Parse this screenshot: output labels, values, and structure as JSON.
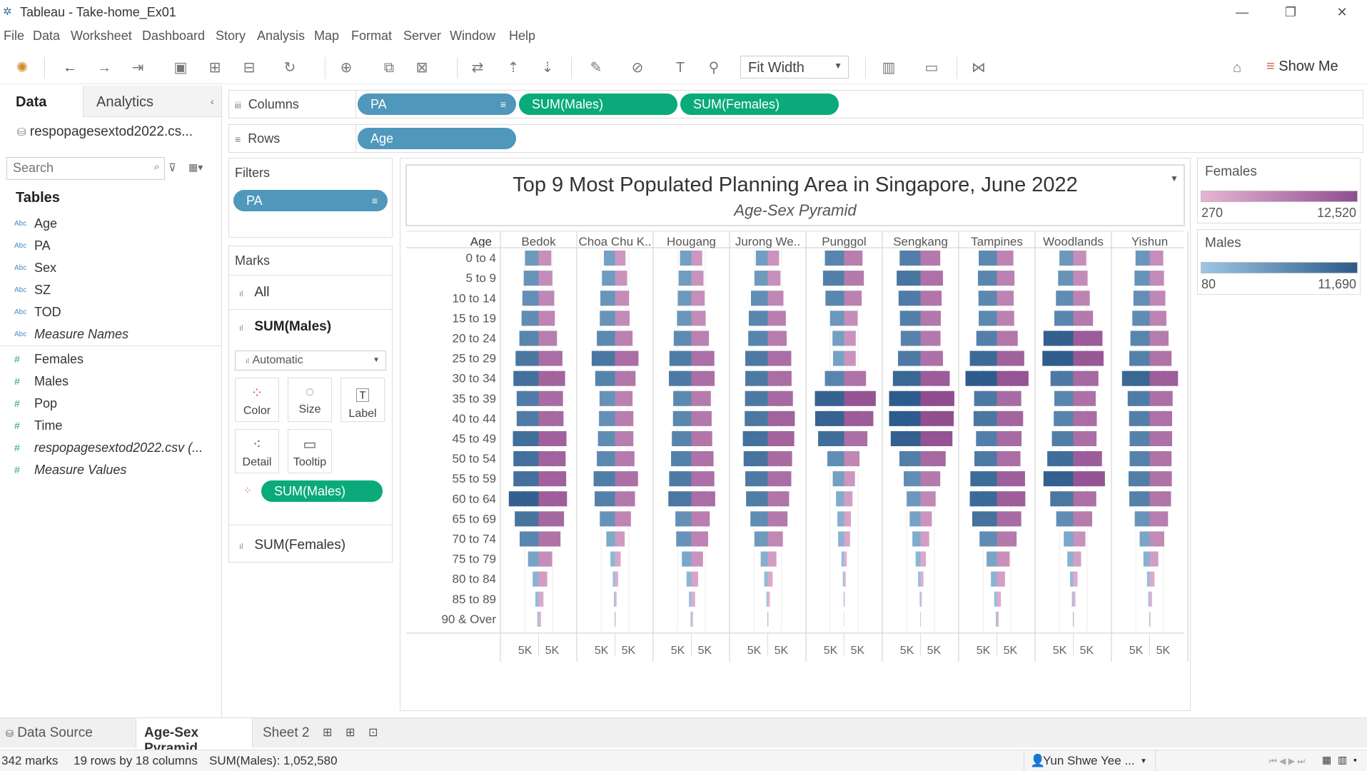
{
  "window": {
    "title": "Tableau - Take-home_Ex01"
  },
  "menu": [
    "File",
    "Data",
    "Worksheet",
    "Dashboard",
    "Story",
    "Analysis",
    "Map",
    "Format",
    "Server",
    "Window",
    "Help"
  ],
  "toolbar": {
    "fit": "Fit Width",
    "show_me": "Show Me"
  },
  "left_pane": {
    "tab_data": "Data",
    "tab_analytics": "Analytics",
    "data_source": "respopagesextod2022.cs...",
    "search_placeholder": "Search",
    "tables_heading": "Tables",
    "dimensions": [
      {
        "type": "Abc",
        "name": "Age"
      },
      {
        "type": "Abc",
        "name": "PA"
      },
      {
        "type": "Abc",
        "name": "Sex"
      },
      {
        "type": "Abc",
        "name": "SZ"
      },
      {
        "type": "Abc",
        "name": "TOD"
      },
      {
        "type": "Abc",
        "name": "Measure Names"
      }
    ],
    "measures": [
      {
        "type": "#",
        "name": "Females"
      },
      {
        "type": "#",
        "name": "Males"
      },
      {
        "type": "#",
        "name": "Pop"
      },
      {
        "type": "#",
        "name": "Time"
      },
      {
        "type": "#",
        "name": "respopagesextod2022.csv (..."
      },
      {
        "type": "#",
        "name": "Measure Values"
      }
    ]
  },
  "shelves": {
    "columns_label": "Columns",
    "rows_label": "Rows",
    "columns": [
      "PA",
      "SUM(Males)",
      "SUM(Females)"
    ],
    "rows": [
      "Age"
    ]
  },
  "filters": {
    "label": "Filters",
    "items": [
      "PA"
    ]
  },
  "marks": {
    "label": "Marks",
    "all": "All",
    "active": "SUM(Males)",
    "mark_type": "Automatic",
    "buttons": [
      "Color",
      "Size",
      "Label",
      "Detail",
      "Tooltip"
    ],
    "color_pill": "SUM(Males)",
    "other": "SUM(Females)"
  },
  "legends": {
    "females": {
      "title": "Females",
      "min": "270",
      "max": "12,520",
      "color_low": "#e7b6d4",
      "color_high": "#8f4d8f"
    },
    "males": {
      "title": "Males",
      "min": "80",
      "max": "11,690",
      "color_low": "#9cc7e3",
      "color_high": "#2c5a8a"
    }
  },
  "tabs": {
    "data_source": "Data Source",
    "active": "Age-Sex Pyramid",
    "sheet2": "Sheet 2"
  },
  "status": {
    "marks": "342 marks",
    "dims": "19 rows by 18 columns",
    "sum": "SUM(Males): 1,052,580",
    "user": "Yun Shwe Yee ..."
  },
  "chart_data": {
    "type": "bar",
    "title": "Top 9 Most Populated Planning Area in Singapore, June 2022",
    "subtitle": "Age-Sex Pyramid",
    "row_header": "Age",
    "axis_tick": "5K",
    "categories": [
      "0 to 4",
      "5 to 9",
      "10 to 14",
      "15 to 19",
      "20 to 24",
      "25 to 29",
      "30 to 34",
      "35 to 39",
      "40 to 44",
      "45 to 49",
      "50 to 54",
      "55 to 59",
      "60 to 64",
      "65 to 69",
      "70 to 74",
      "75 to 79",
      "80 to 84",
      "85 to 89",
      "90 & Over"
    ],
    "panels": [
      {
        "area": "Bedok",
        "males": [
          5000,
          5500,
          6000,
          6300,
          7100,
          8500,
          9300,
          8100,
          8100,
          9500,
          9300,
          9300,
          11000,
          8800,
          7000,
          3900,
          2200,
          1200,
          500
        ],
        "females": [
          4700,
          5100,
          5800,
          6000,
          6800,
          8800,
          9800,
          9000,
          9200,
          10300,
          10000,
          10200,
          10500,
          9400,
          8100,
          5000,
          3200,
          1800,
          900
        ]
      },
      {
        "area": "Choa Chu K..",
        "males": [
          4100,
          4800,
          5400,
          5600,
          6700,
          8600,
          7300,
          5700,
          5900,
          6300,
          6700,
          7900,
          7500,
          5600,
          3200,
          1700,
          800,
          400,
          150
        ],
        "females": [
          3900,
          4500,
          5200,
          5400,
          6500,
          8700,
          7600,
          6500,
          6800,
          6800,
          7200,
          8500,
          7400,
          5900,
          3600,
          2100,
          1200,
          600,
          250
        ]
      },
      {
        "area": "Hougang",
        "males": [
          4200,
          4700,
          5000,
          5300,
          6500,
          8100,
          8300,
          6700,
          6800,
          7200,
          7500,
          8200,
          8500,
          5900,
          5600,
          3500,
          1800,
          900,
          300
        ],
        "females": [
          4000,
          4500,
          4900,
          5300,
          6500,
          8500,
          8600,
          7200,
          7500,
          7700,
          8200,
          8500,
          8800,
          6800,
          6200,
          4300,
          2500,
          1400,
          600
        ]
      },
      {
        "area": "Jurong We..",
        "males": [
          4400,
          4900,
          6200,
          7000,
          7200,
          8300,
          8300,
          8400,
          8500,
          9200,
          8900,
          8300,
          8000,
          6400,
          4900,
          2600,
          1300,
          500,
          150
        ],
        "females": [
          4200,
          4700,
          5800,
          6700,
          7000,
          8700,
          8800,
          9300,
          10000,
          9800,
          9000,
          8700,
          7900,
          7300,
          5600,
          3200,
          1800,
          800,
          250
        ]
      },
      {
        "area": "Punggol",
        "males": [
          7100,
          7800,
          6900,
          5200,
          4300,
          4100,
          7100,
          10800,
          10700,
          9600,
          6200,
          4200,
          3000,
          2500,
          2200,
          1000,
          500,
          200,
          50
        ],
        "females": [
          6800,
          7300,
          6500,
          5000,
          4300,
          4300,
          8100,
          11700,
          10800,
          8600,
          5700,
          4000,
          3100,
          2500,
          2200,
          1000,
          600,
          250,
          100
        ]
      },
      {
        "area": "Sengkang",
        "males": [
          7700,
          8800,
          8100,
          7600,
          7300,
          8300,
          10200,
          11600,
          11600,
          11000,
          7800,
          6200,
          5100,
          4000,
          3000,
          1800,
          900,
          300,
          100
        ],
        "females": [
          7300,
          8300,
          7800,
          7500,
          7400,
          8300,
          10800,
          12500,
          12300,
          11800,
          9300,
          7300,
          5600,
          4200,
          3200,
          2000,
          1100,
          500,
          150
        ]
      },
      {
        "area": "Tampines",
        "males": [
          6700,
          7000,
          6800,
          6700,
          7600,
          10000,
          11600,
          8400,
          8600,
          7700,
          8300,
          9800,
          10000,
          9100,
          6400,
          3800,
          2200,
          1000,
          400
        ],
        "females": [
          6100,
          6500,
          6200,
          6400,
          7700,
          10100,
          11700,
          9000,
          9700,
          9100,
          8700,
          10400,
          10500,
          9000,
          7300,
          4700,
          3000,
          1500,
          700
        ]
      },
      {
        "area": "Woodlands",
        "males": [
          5100,
          5600,
          6400,
          7000,
          11000,
          11400,
          8400,
          7000,
          7200,
          7900,
          9600,
          11000,
          8500,
          6300,
          3500,
          2200,
          1200,
          500,
          150
        ],
        "females": [
          4800,
          5300,
          6100,
          7300,
          10800,
          11200,
          9300,
          8300,
          8700,
          8600,
          10600,
          11700,
          8500,
          7000,
          4500,
          2900,
          1600,
          800,
          250
        ]
      },
      {
        "area": "Yishun",
        "males": [
          5200,
          5600,
          6000,
          6400,
          7100,
          7500,
          10200,
          8100,
          7600,
          7400,
          7400,
          7800,
          7500,
          5500,
          3700,
          2300,
          1000,
          500,
          150
        ],
        "females": [
          5000,
          5300,
          5800,
          6200,
          7000,
          8100,
          10500,
          8500,
          8300,
          8300,
          8100,
          8200,
          7900,
          6800,
          5400,
          3200,
          1800,
          900,
          300
        ]
      }
    ],
    "color_scale": {
      "males": [
        80,
        11690
      ],
      "females": [
        270,
        12520
      ]
    }
  }
}
